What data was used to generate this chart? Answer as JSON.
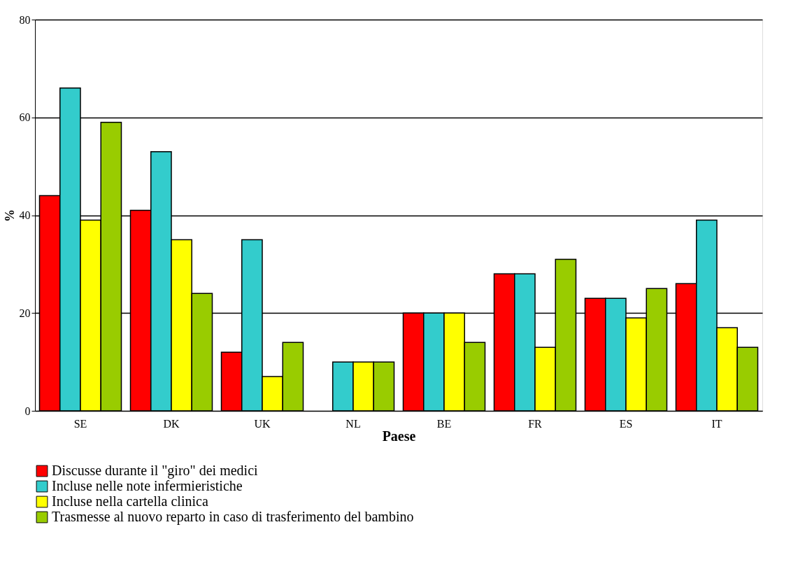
{
  "chart_data": {
    "type": "bar",
    "xlabel": "Paese",
    "ylabel": "%",
    "categories": [
      "SE",
      "DK",
      "UK",
      "NL",
      "BE",
      "FR",
      "ES",
      "IT"
    ],
    "series": [
      {
        "name": "Discusse durante il \"giro\" dei medici",
        "color": "#ff0000",
        "values": [
          44,
          41,
          12,
          null,
          20,
          28,
          23,
          26
        ]
      },
      {
        "name": "Incluse nelle note infermieristiche",
        "color": "#33cccc",
        "values": [
          66,
          53,
          35,
          10,
          20,
          28,
          23,
          39
        ]
      },
      {
        "name": "Incluse nella cartella clinica",
        "color": "#ffff00",
        "values": [
          39,
          35,
          7,
          10,
          20,
          13,
          19,
          17
        ]
      },
      {
        "name": "Trasmesse al nuovo reparto in caso di trasferimento del bambino",
        "color": "#99cc00",
        "values": [
          59,
          24,
          14,
          10,
          14,
          31,
          25,
          13
        ]
      }
    ],
    "ylim": [
      0,
      80
    ],
    "yticks": [
      0,
      20,
      40,
      60,
      80
    ],
    "grid": "y",
    "legend": "bottom"
  }
}
